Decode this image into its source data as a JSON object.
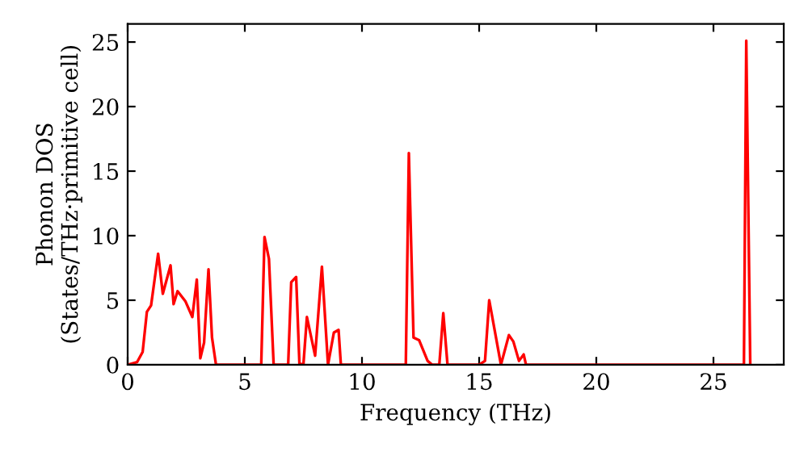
{
  "chart_data": {
    "type": "line",
    "xlabel": "Frequency (THz)",
    "ylabel": "Phonon DOS\n(States/THz·primitive cell)",
    "xlim": [
      0,
      28
    ],
    "ylim": [
      0,
      26.4
    ],
    "xticks": [
      0,
      5,
      10,
      15,
      20,
      25
    ],
    "yticks": [
      0,
      5,
      10,
      15,
      20,
      25
    ],
    "grid": false,
    "legend": false,
    "series": [
      {
        "color": "#ff0000",
        "x": [
          0,
          0.4,
          0.64,
          0.82,
          1.0,
          1.3,
          1.5,
          1.83,
          1.96,
          2.13,
          2.47,
          2.76,
          2.95,
          3.1,
          3.26,
          3.45,
          3.6,
          3.77,
          5.7,
          5.84,
          6.03,
          6.23,
          6.85,
          6.98,
          7.19,
          7.33,
          7.5,
          7.65,
          8.0,
          8.29,
          8.55,
          8.8,
          9.0,
          9.1,
          11.87,
          12.0,
          12.2,
          12.44,
          12.8,
          13.0,
          13.3,
          13.47,
          13.65,
          15.0,
          15.25,
          15.43,
          15.93,
          16.27,
          16.46,
          16.7,
          16.9,
          17.0,
          26.3,
          26.4,
          26.57
        ],
        "values": [
          0,
          0.2,
          1.0,
          4.1,
          4.6,
          8.6,
          5.5,
          7.7,
          4.7,
          5.7,
          4.9,
          3.7,
          6.6,
          0.5,
          1.7,
          7.4,
          2.1,
          0,
          0,
          9.9,
          8.2,
          0,
          0,
          6.4,
          6.8,
          0.1,
          0,
          3.7,
          0.7,
          7.6,
          0,
          2.5,
          2.7,
          0,
          0,
          16.4,
          2.1,
          1.9,
          0.3,
          0,
          0,
          4.0,
          0,
          0,
          0.3,
          5.0,
          0,
          2.3,
          1.8,
          0.3,
          0.8,
          0,
          0,
          25.1,
          0
        ]
      }
    ]
  }
}
